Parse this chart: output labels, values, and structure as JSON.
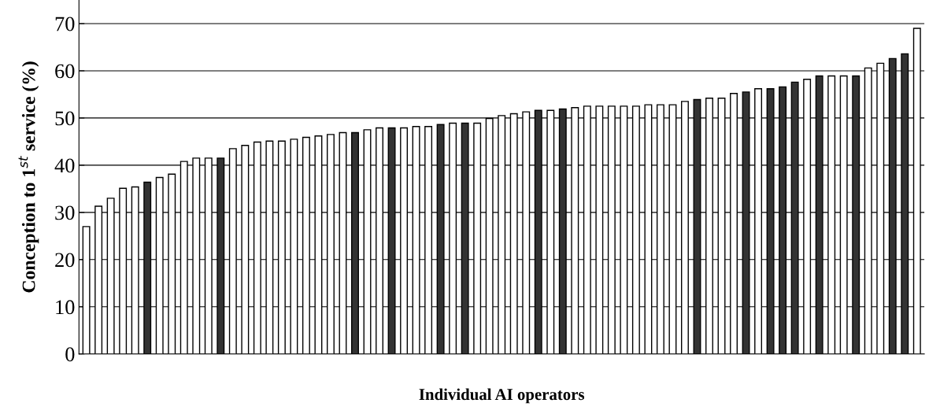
{
  "chart_data": {
    "type": "bar",
    "xlabel": "Individual AI operators",
    "ylabel": "Conception to 1$^{st}$ service (%)",
    "categories": [
      null,
      null,
      null,
      null,
      null,
      null,
      null,
      null,
      null,
      null,
      null,
      null,
      null,
      null,
      null,
      null,
      null,
      null,
      null,
      null,
      null,
      null,
      null,
      null,
      null,
      null,
      null,
      null,
      null,
      null,
      null,
      null,
      null,
      null,
      null,
      null,
      null,
      null,
      null,
      null,
      null,
      null,
      null,
      null,
      null,
      null,
      null,
      null,
      null,
      null,
      null,
      null,
      null,
      null,
      null,
      null,
      null,
      null,
      null,
      null,
      null,
      null,
      null,
      null,
      null,
      null,
      null,
      null,
      null
    ],
    "values": [
      27.0,
      31.3,
      33.0,
      35.1,
      35.4,
      36.4,
      37.4,
      38.1,
      40.8,
      41.5,
      41.5,
      41.5,
      43.5,
      44.2,
      44.9,
      45.1,
      45.1,
      45.5,
      45.9,
      46.2,
      46.5,
      46.9,
      46.9,
      47.5,
      47.9,
      47.9,
      47.9,
      48.2,
      48.2,
      48.6,
      48.9,
      48.9,
      48.9,
      49.9,
      50.5,
      50.9,
      51.3,
      51.6,
      51.6,
      51.9,
      52.2,
      52.5,
      52.5,
      52.5,
      52.5,
      52.5,
      52.8,
      52.8,
      52.8,
      53.5,
      53.9,
      54.2,
      54.2,
      55.2,
      55.5,
      56.2,
      56.2,
      56.6,
      57.6,
      58.2,
      58.9,
      58.9,
      58.9,
      58.9,
      60.6,
      61.6,
      62.6,
      63.6,
      69.0
    ],
    "colors": [
      "#ffffff",
      "#ffffff",
      "#ffffff",
      "#ffffff",
      "#ffffff",
      "#333333",
      "#ffffff",
      "#ffffff",
      "#ffffff",
      "#ffffff",
      "#ffffff",
      "#333333",
      "#ffffff",
      "#ffffff",
      "#ffffff",
      "#ffffff",
      "#ffffff",
      "#ffffff",
      "#ffffff",
      "#ffffff",
      "#ffffff",
      "#ffffff",
      "#333333",
      "#ffffff",
      "#ffffff",
      "#333333",
      "#ffffff",
      "#ffffff",
      "#ffffff",
      "#333333",
      "#ffffff",
      "#333333",
      "#ffffff",
      "#ffffff",
      "#ffffff",
      "#ffffff",
      "#ffffff",
      "#333333",
      "#ffffff",
      "#333333",
      "#ffffff",
      "#ffffff",
      "#ffffff",
      "#ffffff",
      "#ffffff",
      "#ffffff",
      "#ffffff",
      "#ffffff",
      "#ffffff",
      "#ffffff",
      "#333333",
      "#ffffff",
      "#ffffff",
      "#ffffff",
      "#333333",
      "#ffffff",
      "#333333",
      "#333333",
      "#333333",
      "#ffffff",
      "#333333",
      "#ffffff",
      "#ffffff",
      "#333333",
      "#ffffff",
      "#ffffff",
      "#333333",
      "#333333",
      "#ffffff"
    ],
    "ylim": [
      0,
      75
    ],
    "yticks": [
      0,
      10,
      20,
      30,
      40,
      50,
      60,
      70
    ],
    "grid": "y",
    "legend": false
  }
}
